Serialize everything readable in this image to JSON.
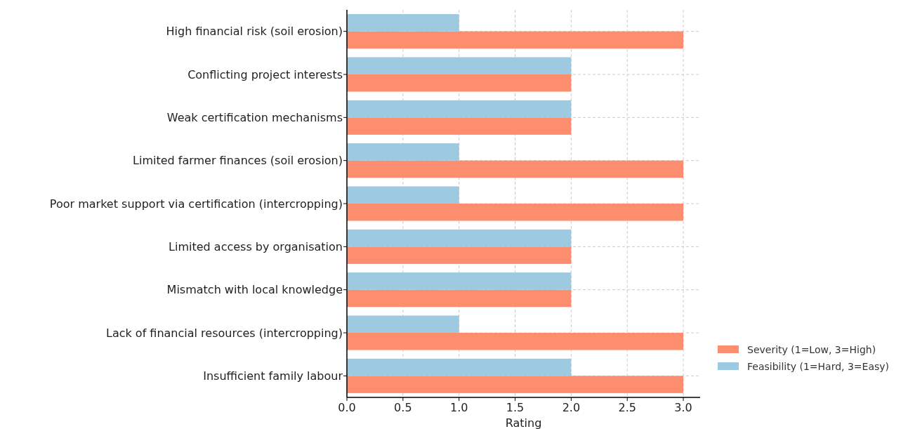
{
  "chart_data": {
    "type": "bar",
    "orientation": "horizontal",
    "xlabel": "Rating",
    "categories": [
      "High financial risk (soil erosion)",
      "Conflicting project interests",
      "Weak certification mechanisms",
      "Limited farmer finances (soil erosion)",
      "Poor market support via certification (intercropping)",
      "Limited access by organisation",
      "Mismatch with local knowledge",
      "Lack of financial resources (intercropping)",
      "Insufficient family labour"
    ],
    "series": [
      {
        "name": "Severity (1=Low, 3=High)",
        "color": "#fc8d6e",
        "values": [
          3,
          2,
          2,
          3,
          3,
          2,
          2,
          3,
          3
        ]
      },
      {
        "name": "Feasibility (1=Hard, 3=Easy)",
        "color": "#9ecae1",
        "values": [
          1,
          2,
          2,
          1,
          1,
          2,
          2,
          1,
          2
        ]
      }
    ],
    "xlim": [
      0,
      3.15
    ],
    "xticks": [
      {
        "value": 0,
        "label": "0.0"
      },
      {
        "value": 0.5,
        "label": "0.5"
      },
      {
        "value": 1,
        "label": "1.0"
      },
      {
        "value": 1.5,
        "label": "1.5"
      },
      {
        "value": 2,
        "label": "2.0"
      },
      {
        "value": 2.5,
        "label": "2.5"
      },
      {
        "value": 3,
        "label": "3.0"
      }
    ],
    "grid": true,
    "legend": "bottom right"
  }
}
